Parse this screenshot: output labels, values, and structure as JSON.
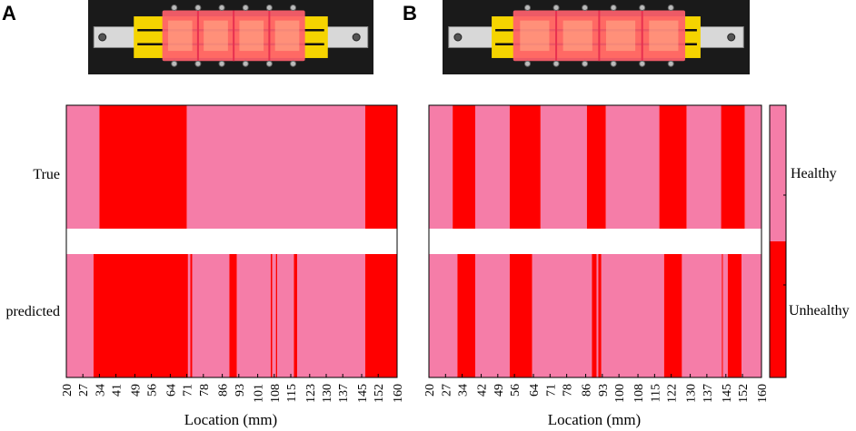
{
  "panels": {
    "A": {
      "letter": "A"
    },
    "B": {
      "letter": "B"
    }
  },
  "colors": {
    "healthy": "#f57da8",
    "unhealthy": "#ff0000",
    "photo_background": "#1a1a1a",
    "board": "#f5d400",
    "gel": "#ff5f6d"
  },
  "chart_data": [
    {
      "type": "heatmap",
      "panel": "A",
      "rows": [
        "True",
        "predicted"
      ],
      "xlabel": "Location (mm)",
      "x_ticks": [
        20,
        27,
        34,
        41,
        49,
        56,
        64,
        71,
        78,
        86,
        93,
        101,
        108,
        115,
        123,
        130,
        137,
        145,
        152,
        160
      ],
      "xlim": [
        20,
        160
      ],
      "categories": [
        "Healthy",
        "Unhealthy"
      ],
      "segments": {
        "True": [
          {
            "from": 20,
            "to": 34,
            "state": "Healthy"
          },
          {
            "from": 34,
            "to": 71,
            "state": "Unhealthy"
          },
          {
            "from": 71,
            "to": 146.5,
            "state": "Healthy"
          },
          {
            "from": 146.5,
            "to": 160,
            "state": "Unhealthy"
          }
        ],
        "predicted": [
          {
            "from": 20,
            "to": 31.5,
            "state": "Healthy"
          },
          {
            "from": 31.5,
            "to": 71.5,
            "state": "Unhealthy"
          },
          {
            "from": 71.5,
            "to": 72.5,
            "state": "Healthy"
          },
          {
            "from": 72.5,
            "to": 73.3,
            "state": "Unhealthy"
          },
          {
            "from": 73.3,
            "to": 89,
            "state": "Healthy"
          },
          {
            "from": 89,
            "to": 92.2,
            "state": "Unhealthy"
          },
          {
            "from": 92.2,
            "to": 106.5,
            "state": "Healthy"
          },
          {
            "from": 106.5,
            "to": 107.2,
            "state": "Unhealthy"
          },
          {
            "from": 107.2,
            "to": 108.7,
            "state": "Healthy"
          },
          {
            "from": 108.7,
            "to": 109.3,
            "state": "Unhealthy"
          },
          {
            "from": 109.3,
            "to": 116.3,
            "state": "Healthy"
          },
          {
            "from": 116.3,
            "to": 117.7,
            "state": "Unhealthy"
          },
          {
            "from": 117.7,
            "to": 146.5,
            "state": "Healthy"
          },
          {
            "from": 146.5,
            "to": 160,
            "state": "Unhealthy"
          }
        ]
      }
    },
    {
      "type": "heatmap",
      "panel": "B",
      "rows": [
        "True",
        "predicted"
      ],
      "xlabel": "Location (mm)",
      "x_ticks": [
        20,
        27,
        34,
        42,
        49,
        56,
        64,
        71,
        78,
        86,
        93,
        100,
        108,
        115,
        122,
        130,
        137,
        145,
        152,
        160
      ],
      "xlim": [
        20,
        160
      ],
      "categories": [
        "Healthy",
        "Unhealthy"
      ],
      "segments": {
        "True": [
          {
            "from": 20,
            "to": 30,
            "state": "Healthy"
          },
          {
            "from": 30,
            "to": 39.5,
            "state": "Unhealthy"
          },
          {
            "from": 39.5,
            "to": 54,
            "state": "Healthy"
          },
          {
            "from": 54,
            "to": 67,
            "state": "Unhealthy"
          },
          {
            "from": 67,
            "to": 86.5,
            "state": "Healthy"
          },
          {
            "from": 86.5,
            "to": 94.5,
            "state": "Unhealthy"
          },
          {
            "from": 94.5,
            "to": 117,
            "state": "Healthy"
          },
          {
            "from": 117,
            "to": 128.5,
            "state": "Unhealthy"
          },
          {
            "from": 128.5,
            "to": 143,
            "state": "Healthy"
          },
          {
            "from": 143,
            "to": 153,
            "state": "Unhealthy"
          },
          {
            "from": 153,
            "to": 160,
            "state": "Healthy"
          }
        ],
        "predicted": [
          {
            "from": 20,
            "to": 32,
            "state": "Healthy"
          },
          {
            "from": 32,
            "to": 39.5,
            "state": "Unhealthy"
          },
          {
            "from": 39.5,
            "to": 54,
            "state": "Healthy"
          },
          {
            "from": 54,
            "to": 63.5,
            "state": "Unhealthy"
          },
          {
            "from": 63.5,
            "to": 88.6,
            "state": "Healthy"
          },
          {
            "from": 88.6,
            "to": 90.6,
            "state": "Unhealthy"
          },
          {
            "from": 90.6,
            "to": 91.3,
            "state": "Healthy"
          },
          {
            "from": 91.3,
            "to": 92.6,
            "state": "Unhealthy"
          },
          {
            "from": 92.6,
            "to": 119,
            "state": "Healthy"
          },
          {
            "from": 119,
            "to": 126.5,
            "state": "Unhealthy"
          },
          {
            "from": 126.5,
            "to": 143.3,
            "state": "Healthy"
          },
          {
            "from": 143.3,
            "to": 143.8,
            "state": "Unhealthy"
          },
          {
            "from": 143.8,
            "to": 145.8,
            "state": "Healthy"
          },
          {
            "from": 145.8,
            "to": 151.6,
            "state": "Unhealthy"
          },
          {
            "from": 151.6,
            "to": 160,
            "state": "Healthy"
          }
        ]
      }
    }
  ],
  "colorbar": {
    "labels": [
      "Healthy",
      "Unhealthy"
    ],
    "healthy_fraction": 0.5
  }
}
